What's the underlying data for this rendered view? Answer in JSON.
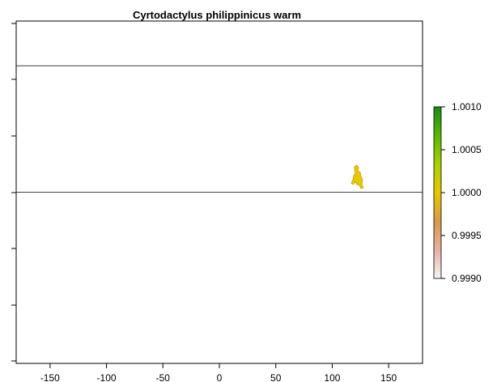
{
  "title": "Cyrtodactylus philippinicus warm",
  "x_axis": {
    "ticks": [
      -150,
      -100,
      -50,
      0,
      50,
      100,
      150
    ],
    "tick_labels": [
      "-150",
      "-100",
      "-50",
      "0",
      "50",
      "100",
      "150"
    ],
    "range": [
      -180,
      180
    ]
  },
  "y_axis": {
    "range": [
      -90,
      90
    ]
  },
  "reference_lines": {
    "horizontal": [
      66.5,
      0
    ]
  },
  "legend": {
    "tick_labels": [
      "1.0010",
      "1.0005",
      "1.0000",
      "0.9995",
      "0.9990"
    ],
    "values": [
      1.001,
      1.0005,
      1.0,
      0.9995,
      0.999
    ],
    "range": [
      0.999,
      1.001
    ],
    "colors": [
      "#f5f5f5",
      "#e6b0a3",
      "#d89a4a",
      "#e6c800",
      "#a8d000",
      "#5bb800",
      "#1a8a1a"
    ]
  },
  "occurrence": {
    "color": "#e6c800",
    "outline_color": "#c8a000",
    "approx_center": [
      122,
      12
    ]
  }
}
